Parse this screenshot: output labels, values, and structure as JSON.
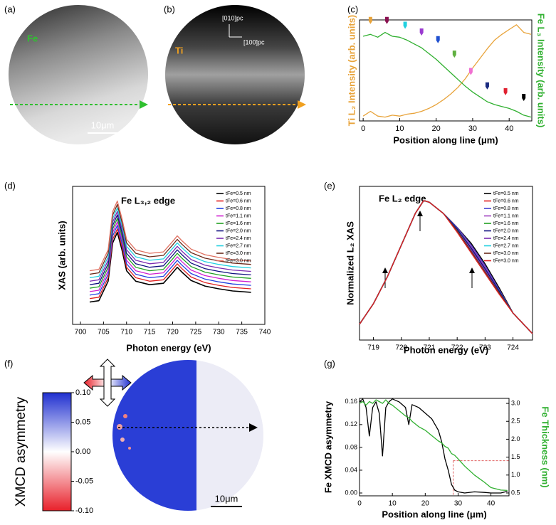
{
  "images": [
    {
      "label": "(a)",
      "element": "Fe",
      "scale_bar": "10μm"
    },
    {
      "label": "(b)",
      "element": "Ti",
      "axis_y": "[010]pc",
      "axis_x": "[100]pc"
    },
    {
      "label": "(f)",
      "scale_bar": "10μm"
    }
  ],
  "chart_data": [
    {
      "type": "line",
      "label": "(c)",
      "xlabel": "Position along line (μm)",
      "ylabel": "Ti L₂ Intensity (arb. units)",
      "y2label": "Fe L₃ Intensity (arb. units)",
      "xlim": [
        -1,
        46.2
      ],
      "xticks": [
        0,
        10,
        20,
        30,
        40
      ],
      "ylim": [
        0,
        1.05
      ],
      "y2lim": [
        0,
        1.05
      ],
      "x": [
        0,
        2,
        4,
        6,
        8,
        10,
        12,
        14,
        16,
        18,
        20,
        22,
        24,
        26,
        28,
        30,
        32,
        34,
        36,
        38,
        40,
        42,
        44,
        46
      ],
      "series": [
        {
          "name": "Ti",
          "color": "#e8a33a",
          "values": [
            0.05,
            0.1,
            0.05,
            0.04,
            0.06,
            0.05,
            0.07,
            0.08,
            0.1,
            0.13,
            0.17,
            0.22,
            0.28,
            0.35,
            0.44,
            0.55,
            0.65,
            0.75,
            0.84,
            0.9,
            0.95,
            1.0,
            0.92,
            0.9
          ]
        },
        {
          "name": "Fe",
          "color": "#30b030",
          "axis": "y2",
          "values": [
            0.88,
            0.9,
            0.87,
            0.92,
            0.88,
            0.87,
            0.84,
            0.8,
            0.76,
            0.7,
            0.64,
            0.57,
            0.5,
            0.43,
            0.36,
            0.3,
            0.25,
            0.2,
            0.17,
            0.15,
            0.13,
            0.1,
            0.06,
            0.04
          ]
        }
      ],
      "markers": {
        "x": [
          2,
          6.5,
          11.5,
          16,
          20.5,
          25,
          29.5,
          34,
          39,
          44
        ],
        "y": [
          1.0,
          1.0,
          0.95,
          0.88,
          0.8,
          0.65,
          0.47,
          0.32,
          0.26,
          0.2
        ],
        "colors": [
          "#e8a33a",
          "#8a1050",
          "#20d0e0",
          "#9a3ad0",
          "#2050d0",
          "#60b040",
          "#f070d0",
          "#1a2a80",
          "#e02030",
          "#000000"
        ]
      }
    },
    {
      "type": "line",
      "label": "(d)",
      "title": "Fe L₃,₂ edge",
      "xlabel": "Photon energy (eV)",
      "ylabel": "XAS (arb. units)",
      "legend": "upper right",
      "xlim": [
        698.3,
        740
      ],
      "xticks": [
        700,
        705,
        710,
        715,
        720,
        725,
        730,
        735,
        740
      ],
      "ylim": [
        -0.32,
        1.66
      ],
      "x": [
        702,
        704,
        706,
        707,
        708,
        709,
        710,
        712,
        715,
        718,
        720,
        721,
        722,
        724,
        727,
        730,
        733,
        737
      ],
      "series": [
        {
          "name": "tFe=0.5 nm",
          "color": "#000000",
          "values": [
            0.0,
            0.02,
            0.3,
            0.85,
            1.0,
            0.75,
            0.45,
            0.3,
            0.25,
            0.27,
            0.42,
            0.5,
            0.43,
            0.31,
            0.23,
            0.19,
            0.16,
            0.14
          ]
        },
        {
          "name": "tFe=0.6 nm",
          "color": "#e02020",
          "values": [
            0.05,
            0.07,
            0.35,
            0.9,
            1.05,
            0.8,
            0.5,
            0.35,
            0.3,
            0.32,
            0.47,
            0.55,
            0.48,
            0.36,
            0.28,
            0.24,
            0.21,
            0.19
          ]
        },
        {
          "name": "tFe=0.8 nm",
          "color": "#2040e0",
          "values": [
            0.1,
            0.12,
            0.4,
            0.95,
            1.1,
            0.85,
            0.55,
            0.4,
            0.35,
            0.37,
            0.52,
            0.6,
            0.53,
            0.41,
            0.33,
            0.29,
            0.26,
            0.24
          ]
        },
        {
          "name": "tFe=1.1 nm",
          "color": "#d020d0",
          "values": [
            0.15,
            0.17,
            0.45,
            1.0,
            1.15,
            0.9,
            0.6,
            0.45,
            0.4,
            0.42,
            0.57,
            0.65,
            0.58,
            0.46,
            0.38,
            0.34,
            0.31,
            0.29
          ]
        },
        {
          "name": "tFe=1.6 nm",
          "color": "#20a020",
          "values": [
            0.2,
            0.22,
            0.5,
            1.05,
            1.2,
            0.95,
            0.65,
            0.5,
            0.45,
            0.47,
            0.62,
            0.7,
            0.63,
            0.51,
            0.43,
            0.39,
            0.36,
            0.34
          ]
        },
        {
          "name": "tFe=2.0 nm",
          "color": "#101080",
          "values": [
            0.25,
            0.27,
            0.55,
            1.1,
            1.25,
            1.0,
            0.7,
            0.55,
            0.5,
            0.52,
            0.67,
            0.75,
            0.68,
            0.56,
            0.48,
            0.44,
            0.41,
            0.39
          ]
        },
        {
          "name": "tFe=2.4 nm",
          "color": "#7a2ab0",
          "values": [
            0.3,
            0.32,
            0.6,
            1.15,
            1.3,
            1.05,
            0.75,
            0.6,
            0.55,
            0.57,
            0.72,
            0.8,
            0.73,
            0.61,
            0.53,
            0.49,
            0.46,
            0.44
          ]
        },
        {
          "name": "tFe=2.7 nm",
          "color": "#20d0e0",
          "values": [
            0.35,
            0.37,
            0.65,
            1.2,
            1.35,
            1.1,
            0.8,
            0.65,
            0.6,
            0.62,
            0.77,
            0.85,
            0.78,
            0.66,
            0.58,
            0.54,
            0.51,
            0.49
          ]
        },
        {
          "name": "tFe=3.0 nm",
          "color": "#6b2a1a",
          "values": [
            0.4,
            0.42,
            0.7,
            1.25,
            1.4,
            1.15,
            0.85,
            0.7,
            0.65,
            0.67,
            0.82,
            0.9,
            0.83,
            0.71,
            0.63,
            0.59,
            0.56,
            0.54
          ]
        },
        {
          "name": "tFe=3.0 nm",
          "color": "#e07060",
          "values": [
            0.45,
            0.47,
            0.75,
            1.3,
            1.45,
            1.2,
            0.9,
            0.75,
            0.7,
            0.72,
            0.87,
            0.95,
            0.88,
            0.76,
            0.68,
            0.64,
            0.61,
            0.59
          ]
        }
      ]
    },
    {
      "type": "line",
      "label": "(e)",
      "title": "Fe L₂ edge",
      "xlabel": "Photon energy (eV)",
      "ylabel": "Normalized L₂ XAS",
      "legend": "upper right",
      "xlim": [
        718.5,
        724.7
      ],
      "xticks": [
        719,
        720,
        721,
        722,
        723,
        724
      ],
      "ylim": [
        0.02,
        0.99
      ],
      "x": [
        718.5,
        719,
        719.5,
        720,
        720.5,
        720.8,
        721,
        721.5,
        722,
        722.5,
        723,
        723.5,
        724,
        724.7
      ],
      "series": [
        {
          "name": "tFe=0.5 nm",
          "color": "#000000",
          "values": [
            0.12,
            0.25,
            0.42,
            0.62,
            0.82,
            0.9,
            0.89,
            0.82,
            0.73,
            0.63,
            0.5,
            0.35,
            0.19,
            0.06
          ]
        },
        {
          "name": "tFe=0.6 nm",
          "color": "#e02020",
          "values": [
            0.12,
            0.25,
            0.42,
            0.62,
            0.82,
            0.9,
            0.89,
            0.82,
            0.73,
            0.62,
            0.49,
            0.34,
            0.19,
            0.06
          ]
        },
        {
          "name": "tFe=0.8 nm",
          "color": "#4040d0",
          "values": [
            0.12,
            0.25,
            0.42,
            0.62,
            0.82,
            0.9,
            0.89,
            0.82,
            0.73,
            0.62,
            0.49,
            0.34,
            0.19,
            0.06
          ]
        },
        {
          "name": "tFe=1.1 nm",
          "color": "#a040c0",
          "values": [
            0.12,
            0.25,
            0.42,
            0.62,
            0.82,
            0.9,
            0.89,
            0.82,
            0.72,
            0.61,
            0.48,
            0.33,
            0.19,
            0.06
          ]
        },
        {
          "name": "tFe=1.6 nm",
          "color": "#20a020",
          "values": [
            0.12,
            0.25,
            0.42,
            0.62,
            0.82,
            0.9,
            0.89,
            0.82,
            0.72,
            0.6,
            0.47,
            0.33,
            0.19,
            0.06
          ]
        },
        {
          "name": "tFe=2.0 nm",
          "color": "#101080",
          "values": [
            0.12,
            0.25,
            0.42,
            0.62,
            0.82,
            0.9,
            0.89,
            0.82,
            0.72,
            0.6,
            0.47,
            0.33,
            0.19,
            0.06
          ]
        },
        {
          "name": "tFe=2.4 nm",
          "color": "#7a2ab0",
          "values": [
            0.12,
            0.25,
            0.42,
            0.62,
            0.82,
            0.9,
            0.89,
            0.82,
            0.71,
            0.59,
            0.46,
            0.32,
            0.19,
            0.06
          ]
        },
        {
          "name": "tFe=2.7 nm",
          "color": "#20d0e0",
          "values": [
            0.12,
            0.25,
            0.42,
            0.62,
            0.82,
            0.9,
            0.89,
            0.82,
            0.71,
            0.58,
            0.45,
            0.32,
            0.19,
            0.06
          ]
        },
        {
          "name": "tFe=3.0 nm",
          "color": "#6b2a1a",
          "values": [
            0.12,
            0.25,
            0.42,
            0.62,
            0.82,
            0.9,
            0.89,
            0.82,
            0.71,
            0.58,
            0.45,
            0.32,
            0.19,
            0.06
          ]
        },
        {
          "name": "tFe=3.0 nm",
          "color": "#e02020",
          "values": [
            0.12,
            0.25,
            0.42,
            0.62,
            0.82,
            0.9,
            0.89,
            0.82,
            0.7,
            0.57,
            0.44,
            0.31,
            0.19,
            0.06
          ]
        }
      ]
    },
    {
      "type": "colorbar",
      "ylabel": "XMCD asymmetry",
      "ylim": [
        -0.1,
        0.1
      ],
      "colors": [
        "#e8202a",
        "#ffffff",
        "#2030d0"
      ],
      "yticks": [
        {
          "value": 0.1,
          "label": "0.10"
        },
        0.05,
        {
          "value": 0,
          "label": "0.00"
        },
        -0.05,
        {
          "value": -0.1,
          "label": "-0.10"
        }
      ]
    },
    {
      "type": "line",
      "label": "(g)",
      "xlabel": "Position along line (μm)",
      "ylabel": "Fe XMCD asymmetry",
      "y2label": "Fe Thickness (nm)",
      "xlim": [
        0,
        45.5
      ],
      "xticks": [
        0,
        10,
        20,
        30,
        40
      ],
      "ylim": [
        -0.005,
        0.166
      ],
      "yticks": [
        {
          "value": 0,
          "label": "0.00"
        },
        0.04,
        0.08,
        0.12,
        0.16
      ],
      "y2lim": [
        0.42,
        3.14
      ],
      "y2ticks": [
        0.5,
        {
          "value": 1,
          "label": "1.0"
        },
        1.5,
        {
          "value": 2,
          "label": "2.0"
        },
        2.5,
        {
          "value": 3,
          "label": "3.0"
        }
      ],
      "x": [
        0,
        1,
        2,
        3,
        4,
        5,
        6,
        7,
        8,
        9,
        10,
        12,
        14,
        15,
        16,
        18,
        20,
        22,
        24,
        25,
        26,
        27,
        28,
        29,
        30,
        32,
        35,
        38,
        40,
        43,
        45
      ],
      "series": [
        {
          "name": "Fe XMCD asymmetry",
          "color": "#000000",
          "values": [
            0.16,
            0.165,
            0.15,
            0.1,
            0.15,
            0.16,
            0.14,
            0.065,
            0.15,
            0.16,
            0.165,
            0.16,
            0.15,
            0.12,
            0.155,
            0.15,
            0.14,
            0.13,
            0.11,
            0.09,
            0.06,
            0.04,
            0.015,
            0.005,
            0.002,
            0.0,
            0.002,
            0.001,
            0.0,
            0.0,
            0.003
          ]
        },
        {
          "name": "Fe Thickness",
          "color": "#30b030",
          "axis": "y2",
          "values": [
            3.0,
            3.05,
            2.95,
            3.05,
            3.0,
            3.1,
            3.05,
            3.0,
            3.1,
            3.0,
            2.95,
            2.8,
            2.65,
            2.6,
            2.5,
            2.35,
            2.25,
            2.1,
            1.95,
            1.9,
            1.8,
            1.75,
            1.6,
            1.55,
            1.45,
            1.25,
            1.0,
            0.8,
            0.65,
            0.58,
            0.57
          ]
        }
      ],
      "guides": {
        "x": 28.5,
        "y2": 1.4,
        "color": "#e06060"
      }
    }
  ]
}
